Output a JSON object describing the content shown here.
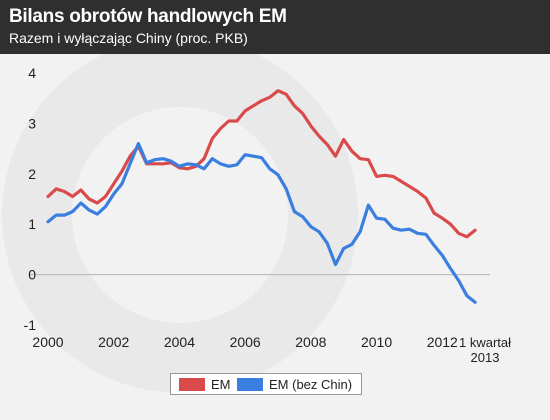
{
  "header": {
    "title": "Bilans obrotów handlowych EM",
    "subtitle": "Razem i wyłączając Chiny (proc. PKB)"
  },
  "colors": {
    "header_bg": "#2f2f2f",
    "plot_bg": "#f2f2f2",
    "em": "#d94b4b",
    "em_ex_china": "#3a7fe0",
    "zero_line": "#b5b5b5"
  },
  "chart_data": {
    "type": "line",
    "title": "Bilans obrotów handlowych EM",
    "subtitle": "Razem i wyłączając Chiny (proc. PKB)",
    "xlabel": "",
    "ylabel": "",
    "xlim": [
      2000,
      2013.3
    ],
    "ylim": [
      -1.2,
      4.3
    ],
    "y_ticks": [
      4,
      3,
      2,
      1,
      0,
      -1
    ],
    "x_ticks": [
      {
        "value": 2000,
        "label": "2000"
      },
      {
        "value": 2002,
        "label": "2002"
      },
      {
        "value": 2004,
        "label": "2004"
      },
      {
        "value": 2006,
        "label": "2006"
      },
      {
        "value": 2008,
        "label": "2008"
      },
      {
        "value": 2010,
        "label": "2010"
      },
      {
        "value": 2012,
        "label": "2012"
      }
    ],
    "x_end_label": [
      "1 kwartał",
      "2013"
    ],
    "grid": false,
    "legend_position": "bottom",
    "series": [
      {
        "name": "EM",
        "color": "#d94b4b",
        "x": [
          2000,
          2000.25,
          2000.5,
          2000.75,
          2001,
          2001.25,
          2001.5,
          2001.75,
          2002,
          2002.25,
          2002.5,
          2002.75,
          2003,
          2003.25,
          2003.5,
          2003.75,
          2004,
          2004.25,
          2004.5,
          2004.75,
          2005,
          2005.25,
          2005.5,
          2005.75,
          2006,
          2006.25,
          2006.5,
          2006.75,
          2007,
          2007.25,
          2007.5,
          2007.75,
          2008,
          2008.25,
          2008.5,
          2008.75,
          2009,
          2009.25,
          2009.5,
          2009.75,
          2010,
          2010.25,
          2010.5,
          2010.75,
          2011,
          2011.25,
          2011.5,
          2011.75,
          2012,
          2012.25,
          2012.5,
          2012.75,
          2013
        ],
        "y": [
          1.55,
          1.7,
          1.65,
          1.55,
          1.68,
          1.5,
          1.42,
          1.55,
          1.8,
          2.05,
          2.35,
          2.55,
          2.2,
          2.2,
          2.2,
          2.22,
          2.12,
          2.1,
          2.15,
          2.3,
          2.7,
          2.9,
          3.05,
          3.05,
          3.25,
          3.35,
          3.45,
          3.52,
          3.65,
          3.58,
          3.35,
          3.2,
          2.95,
          2.75,
          2.58,
          2.35,
          2.68,
          2.45,
          2.3,
          2.28,
          1.95,
          1.97,
          1.95,
          1.85,
          1.75,
          1.65,
          1.52,
          1.22,
          1.12,
          1.0,
          0.82,
          0.75,
          0.88
        ]
      },
      {
        "name": "EM (bez Chin)",
        "color": "#3a7fe0",
        "x": [
          2000,
          2000.25,
          2000.5,
          2000.75,
          2001,
          2001.25,
          2001.5,
          2001.75,
          2002,
          2002.25,
          2002.5,
          2002.75,
          2003,
          2003.25,
          2003.5,
          2003.75,
          2004,
          2004.25,
          2004.5,
          2004.75,
          2005,
          2005.25,
          2005.5,
          2005.75,
          2006,
          2006.25,
          2006.5,
          2006.75,
          2007,
          2007.25,
          2007.5,
          2007.75,
          2008,
          2008.25,
          2008.5,
          2008.75,
          2009,
          2009.25,
          2009.5,
          2009.75,
          2010,
          2010.25,
          2010.5,
          2010.75,
          2011,
          2011.25,
          2011.5,
          2011.75,
          2012,
          2012.25,
          2012.5,
          2012.75,
          2013
        ],
        "y": [
          1.05,
          1.18,
          1.18,
          1.25,
          1.42,
          1.28,
          1.2,
          1.35,
          1.6,
          1.8,
          2.2,
          2.6,
          2.22,
          2.28,
          2.3,
          2.25,
          2.15,
          2.2,
          2.18,
          2.1,
          2.3,
          2.2,
          2.15,
          2.18,
          2.38,
          2.35,
          2.32,
          2.1,
          1.98,
          1.7,
          1.25,
          1.15,
          0.95,
          0.85,
          0.62,
          0.2,
          0.52,
          0.6,
          0.85,
          1.38,
          1.12,
          1.1,
          0.92,
          0.88,
          0.9,
          0.82,
          0.8,
          0.58,
          0.38,
          0.12,
          -0.12,
          -0.42,
          -0.55
        ]
      }
    ]
  }
}
